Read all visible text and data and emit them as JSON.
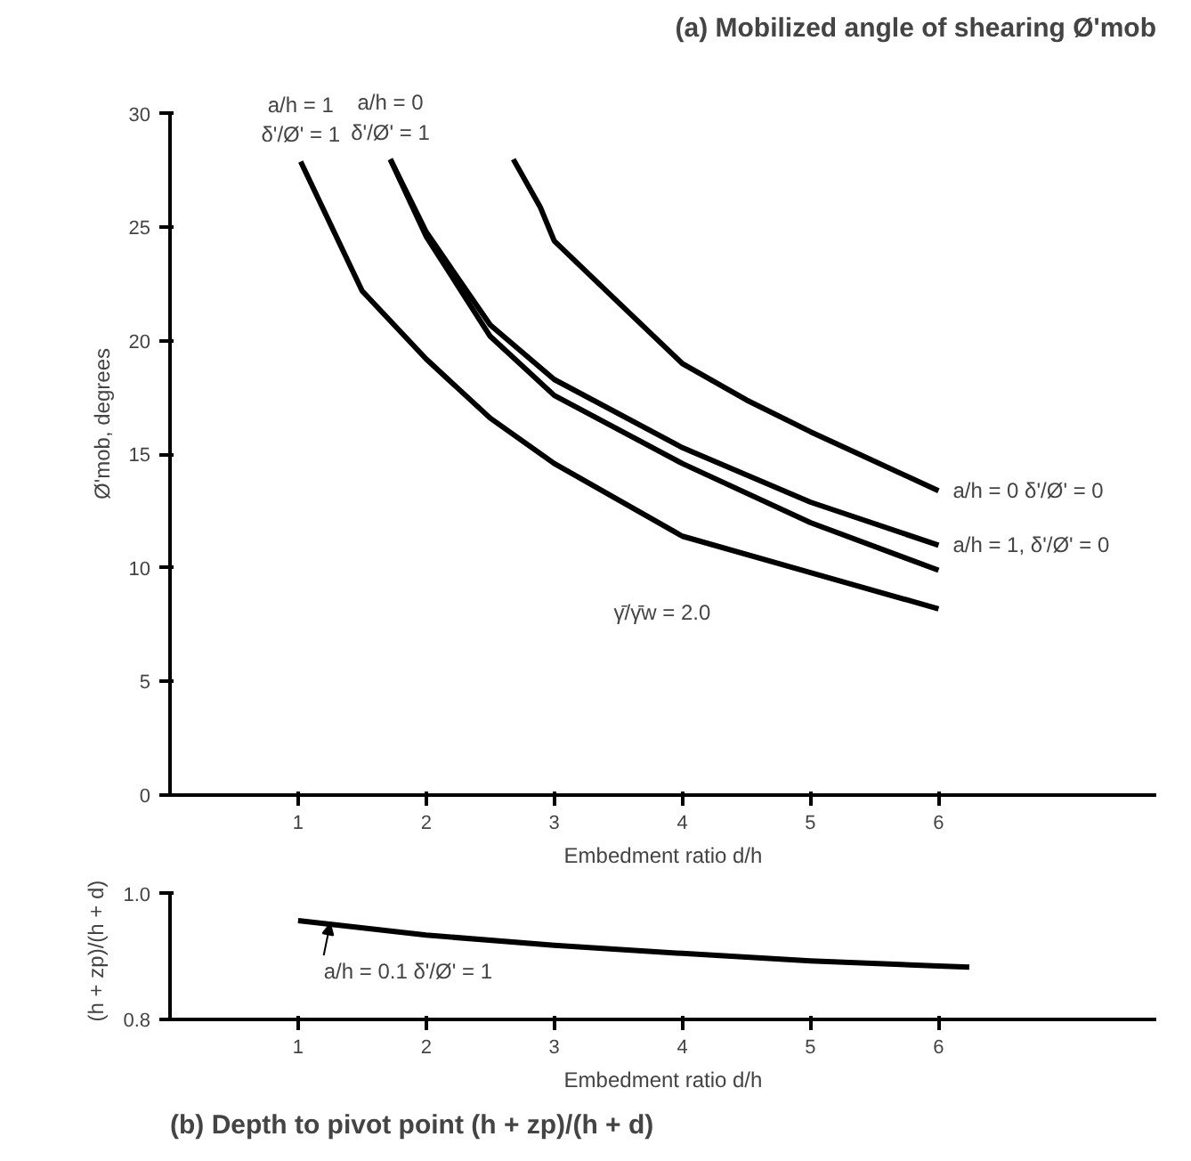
{
  "chart_data": [
    {
      "type": "line",
      "title": "(a) Mobilized angle of shearing Ø'mob",
      "xlabel": "Embedment ratio d/h",
      "ylabel": "Ø'mob, degrees",
      "xlim": [
        0,
        7.7
      ],
      "xticks": [
        1,
        2,
        3,
        4,
        5,
        6
      ],
      "ylim": [
        0,
        30
      ],
      "yticks": [
        0,
        5,
        10,
        15,
        20,
        25,
        30
      ],
      "series": [
        {
          "color": "#000000",
          "x": [
            1.02,
            1.5,
            2,
            2.5,
            3,
            4,
            5,
            6
          ],
          "values": [
            27.9,
            22.2,
            19.2,
            16.6,
            14.6,
            11.4,
            9.8,
            8.2
          ]
        },
        {
          "color": "#000000",
          "x": [
            1.72,
            2,
            2.5,
            3,
            4,
            5,
            6
          ],
          "values": [
            28,
            24.6,
            20.2,
            17.6,
            14.6,
            12.0,
            9.9
          ]
        },
        {
          "color": "#000000",
          "x": [
            1.72,
            2,
            2.5,
            3,
            4,
            5,
            6
          ],
          "values": [
            28,
            24.8,
            20.7,
            18.3,
            15.3,
            12.9,
            11.0
          ]
        },
        {
          "color": "#000000",
          "x": [
            2.68,
            2.89,
            3,
            3.5,
            4,
            4.5,
            5,
            6
          ],
          "values": [
            28,
            25.9,
            24.4,
            21.7,
            19.0,
            17.4,
            16.0,
            13.4
          ]
        }
      ],
      "annotations": [
        {
          "text": "a/h = 1\nδ'/Ø' = 1",
          "x": 1.02,
          "y": 27.9
        },
        {
          "text": "a/h = 0\nδ'/Ø' = 1",
          "x": 1.72,
          "y": 28
        },
        {
          "text": "a/h = 1, δ'/Ø' = 0",
          "x": 6,
          "y": 11.0
        },
        {
          "text": "a/h = 0  δ'/Ø' = 0",
          "x": 6,
          "y": 13.4
        },
        "γ̄/γ̄w = 2.0"
      ]
    },
    {
      "type": "line",
      "title": "(b) Depth to pivot point (h + zp)/(h + d)",
      "xlabel": "Embedment ratio d/h",
      "ylabel": "(h + zp)/(h + d)",
      "xlim": [
        0,
        7.7
      ],
      "xticks": [
        1,
        2,
        3,
        4,
        5,
        6
      ],
      "ylim": [
        0.8,
        1.0
      ],
      "yticks": [
        {
          "value": 0.8,
          "label": "0.8"
        },
        {
          "value": 1.0,
          "label": "1.0"
        }
      ],
      "series": [
        {
          "color": "#000000",
          "x": [
            1,
            2,
            3,
            4,
            5,
            6,
            6.24
          ],
          "values": [
            0.957,
            0.934,
            0.918,
            0.905,
            0.893,
            0.885,
            0.883
          ]
        }
      ],
      "annotations": [
        {
          "text": "a/h = 0.1  δ'/Ø' = 1",
          "x": 1.25,
          "y": 0.952
        }
      ]
    }
  ]
}
